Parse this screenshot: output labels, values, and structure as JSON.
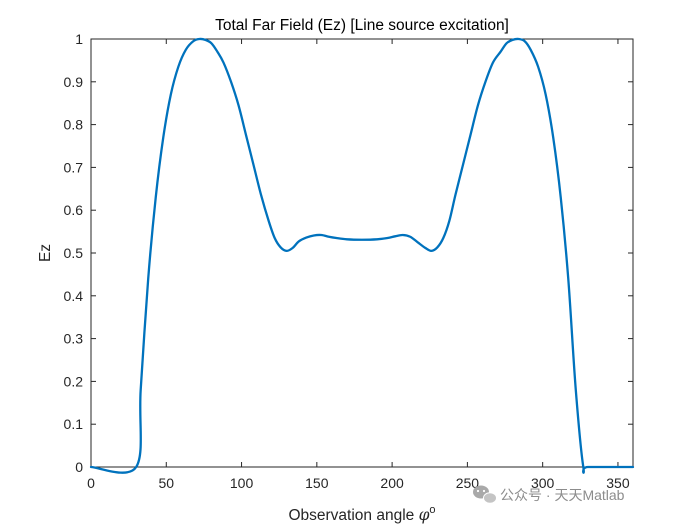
{
  "chart_data": {
    "type": "line",
    "title": "Total Far Field (Ez) [Line source excitation]",
    "xlabel": "Observation angle ",
    "xlabel_symbol": "φ",
    "xlabel_superscript": "o",
    "ylabel": "Ez",
    "xlim": [
      0,
      360
    ],
    "ylim": [
      0,
      1
    ],
    "xticks": [
      0,
      50,
      100,
      150,
      200,
      250,
      300,
      350
    ],
    "yticks": [
      0,
      0.1,
      0.2,
      0.3,
      0.4,
      0.5,
      0.6,
      0.7,
      0.8,
      0.9,
      1
    ],
    "grid": false,
    "line_color": "#0072BD",
    "series": [
      {
        "x": [
          0,
          30,
          33,
          38,
          43,
          48,
          53,
          58,
          63,
          68,
          72,
          76,
          80,
          84,
          88,
          93,
          98,
          103,
          108,
          113,
          118,
          122,
          126,
          130,
          134,
          138,
          143,
          148,
          153,
          158,
          163,
          170,
          180,
          190,
          197,
          202,
          207,
          212,
          217,
          222,
          226,
          230,
          234,
          238,
          242,
          247,
          252,
          257,
          262,
          267,
          272,
          276,
          280,
          284,
          288,
          292,
          297,
          302,
          307,
          312,
          317,
          322,
          327,
          330,
          360
        ],
        "y": [
          0,
          0,
          0.18,
          0.44,
          0.63,
          0.77,
          0.87,
          0.935,
          0.975,
          0.995,
          1.0,
          0.998,
          0.99,
          0.97,
          0.945,
          0.9,
          0.845,
          0.775,
          0.705,
          0.635,
          0.575,
          0.535,
          0.513,
          0.505,
          0.512,
          0.527,
          0.536,
          0.541,
          0.542,
          0.538,
          0.535,
          0.532,
          0.531,
          0.532,
          0.535,
          0.539,
          0.542,
          0.538,
          0.525,
          0.512,
          0.505,
          0.513,
          0.535,
          0.575,
          0.635,
          0.705,
          0.775,
          0.845,
          0.9,
          0.945,
          0.97,
          0.99,
          0.998,
          1.0,
          0.995,
          0.975,
          0.935,
          0.87,
          0.77,
          0.63,
          0.44,
          0.18,
          0,
          0,
          0
        ]
      }
    ]
  },
  "watermark": {
    "text": "公众号 · 天天Matlab",
    "icon": "wechat-icon"
  }
}
